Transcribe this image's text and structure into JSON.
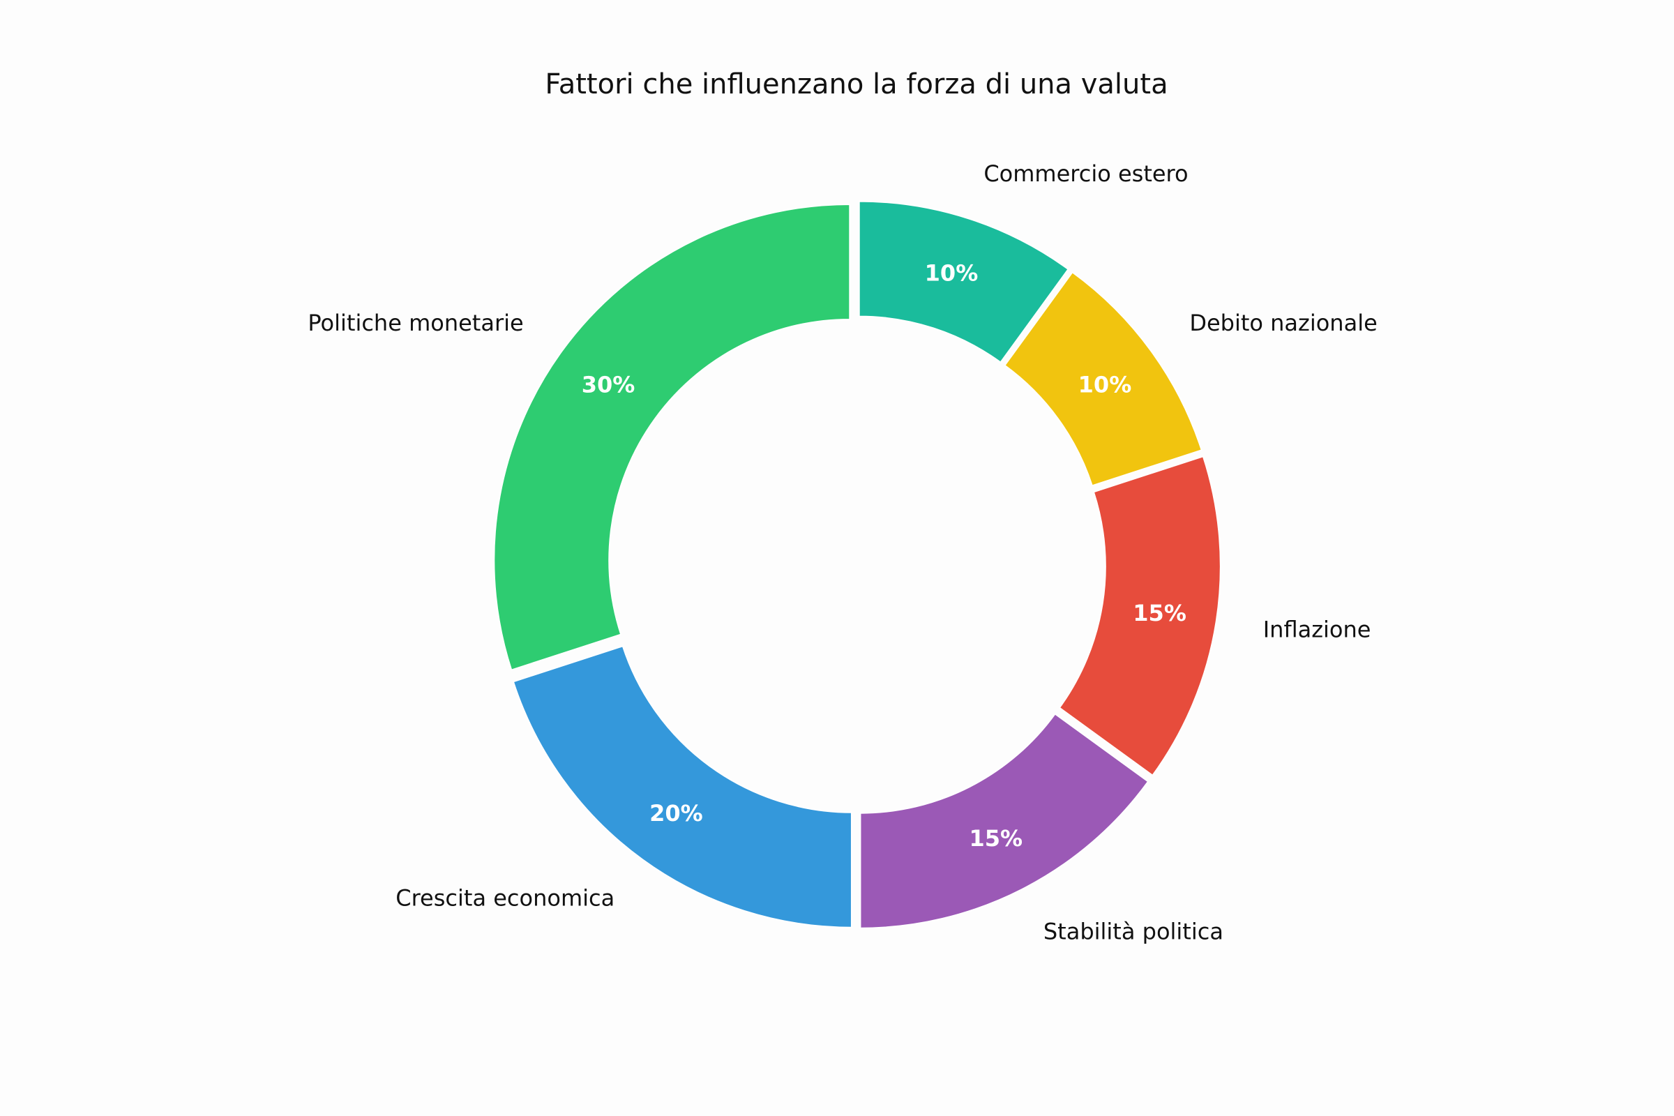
{
  "chart_data": {
    "type": "pie",
    "variant": "donut",
    "title": "Fattori che influenzano la forza di una valuta",
    "start": "top, counter-clockwise",
    "slices": [
      {
        "label": "Politiche monetarie",
        "value": 30,
        "pct_label": "30%",
        "color": "#2ecc71"
      },
      {
        "label": "Crescita economica",
        "value": 20,
        "pct_label": "20%",
        "color": "#3498db"
      },
      {
        "label": "Stabilità politica",
        "value": 15,
        "pct_label": "15%",
        "color": "#9b59b6"
      },
      {
        "label": "Inflazione",
        "value": 15,
        "pct_label": "15%",
        "color": "#e74c3c"
      },
      {
        "label": "Debito nazionale",
        "value": 10,
        "pct_label": "10%",
        "color": "#f1c40f"
      },
      {
        "label": "Commercio estero",
        "value": 10,
        "pct_label": "10%",
        "color": "#1abc9c"
      }
    ]
  }
}
